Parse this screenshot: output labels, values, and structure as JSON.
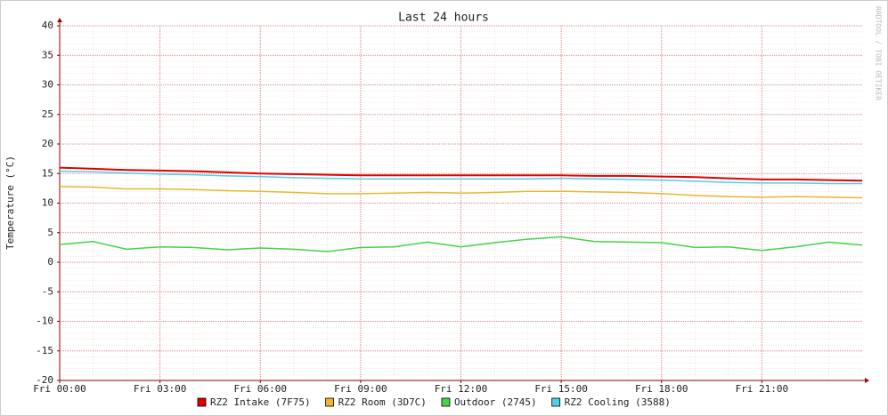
{
  "chart_data": {
    "type": "line",
    "title": "Last 24 hours",
    "y_label": "Temperature (°C)",
    "watermark": "RRDTOOL / TOBI OETIKER",
    "x": [
      0,
      1,
      2,
      3,
      4,
      5,
      6,
      7,
      8,
      9,
      10,
      11,
      12,
      13,
      14,
      15,
      16,
      17,
      18,
      19,
      20,
      21,
      22,
      23,
      24
    ],
    "xlim": [
      0,
      24
    ],
    "xticks": [
      {
        "value": 0,
        "label": "Fri 00:00"
      },
      {
        "value": 3,
        "label": "Fri 03:00"
      },
      {
        "value": 6,
        "label": "Fri 06:00"
      },
      {
        "value": 9,
        "label": "Fri 09:00"
      },
      {
        "value": 12,
        "label": "Fri 12:00"
      },
      {
        "value": 15,
        "label": "Fri 15:00"
      },
      {
        "value": 18,
        "label": "Fri 18:00"
      },
      {
        "value": 21,
        "label": "Fri 21:00"
      }
    ],
    "ylim": [
      -20,
      40
    ],
    "yticks": [
      -20,
      -15,
      -10,
      -5,
      0,
      5,
      10,
      15,
      20,
      25,
      30,
      35,
      40
    ],
    "grid": true,
    "legend": "bottom",
    "series": [
      {
        "name": "RZ2 Intake (7F75)",
        "color": "#e00000",
        "values": [
          16,
          15.8,
          15.6,
          15.5,
          15.4,
          15.2,
          15.0,
          14.9,
          14.8,
          14.7,
          14.7,
          14.7,
          14.7,
          14.7,
          14.7,
          14.7,
          14.6,
          14.6,
          14.5,
          14.4,
          14.2,
          14.0,
          14.0,
          13.9,
          13.8
        ]
      },
      {
        "name": "RZ2 Room (3D7C)",
        "color": "#e8b830",
        "values": [
          12.8,
          12.7,
          12.4,
          12.4,
          12.3,
          12.1,
          12.0,
          11.8,
          11.6,
          11.6,
          11.7,
          11.8,
          11.7,
          11.8,
          12.0,
          12.0,
          11.9,
          11.8,
          11.6,
          11.3,
          11.1,
          11.0,
          11.1,
          11.0,
          10.9
        ]
      },
      {
        "name": "Outdoor (2745)",
        "color": "#44d444",
        "values": [
          3.0,
          3.5,
          2.2,
          2.6,
          2.5,
          2.1,
          2.4,
          2.2,
          1.8,
          2.5,
          2.6,
          3.4,
          2.6,
          3.3,
          3.9,
          4.3,
          3.5,
          3.4,
          3.3,
          2.5,
          2.6,
          2.0,
          2.6,
          3.4,
          2.9
        ]
      },
      {
        "name": "RZ2 Cooling (3588)",
        "color": "#50d0e8",
        "values": [
          15.4,
          15.3,
          15.1,
          14.9,
          14.8,
          14.6,
          14.5,
          14.3,
          14.2,
          14.1,
          14.1,
          14.1,
          14.1,
          14.1,
          14.1,
          14.2,
          14.1,
          14.0,
          13.9,
          13.7,
          13.5,
          13.4,
          13.4,
          13.3,
          13.3
        ]
      }
    ]
  }
}
